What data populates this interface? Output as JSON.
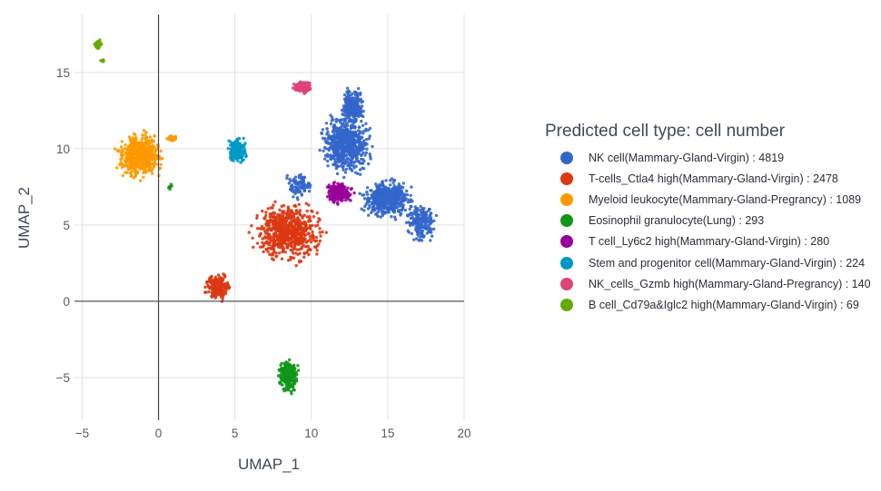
{
  "chart_data": {
    "type": "scatter",
    "xlabel": "UMAP_1",
    "ylabel": "UMAP_2",
    "xlim": [
      -5.5,
      20
    ],
    "ylim": [
      -7.8,
      18.8
    ],
    "x_ticks": [
      -5,
      0,
      5,
      10,
      15,
      20
    ],
    "y_ticks": [
      -5,
      0,
      5,
      10,
      15
    ],
    "x_tick_labels": [
      "−5",
      "0",
      "5",
      "10",
      "15",
      "20"
    ],
    "y_tick_labels": [
      "−5",
      "0",
      "5",
      "10",
      "15"
    ],
    "grid": true,
    "zero_lines": true,
    "legend_title": "Predicted cell type: cell number",
    "legend_position": "right",
    "series": [
      {
        "name": "NK cell(Mammary-Gland-Virgin) : 4819",
        "count": 4819,
        "color": "#3366cc",
        "clusters": [
          {
            "x": [
              10.3,
              14.2
            ],
            "y": [
              8.0,
              12.5
            ],
            "n": 650
          },
          {
            "x": [
              11.8,
              13.6
            ],
            "y": [
              11.5,
              14.1
            ],
            "n": 260
          },
          {
            "x": [
              13.0,
              17.0
            ],
            "y": [
              5.2,
              8.2
            ],
            "n": 520
          },
          {
            "x": [
              16.0,
              18.4
            ],
            "y": [
              3.5,
              6.8
            ],
            "n": 180
          },
          {
            "x": [
              8.0,
              10.5
            ],
            "y": [
              6.6,
              8.6
            ],
            "n": 90
          }
        ]
      },
      {
        "name": "T-cells_Ctla4 high(Mammary-Gland-Virgin) : 2478",
        "count": 2478,
        "color": "#dc3912",
        "clusters": [
          {
            "x": [
              5.8,
              11.2
            ],
            "y": [
              2.2,
              6.8
            ],
            "n": 650
          },
          {
            "x": [
              2.9,
              4.9
            ],
            "y": [
              -0.2,
              2.1
            ],
            "n": 200
          }
        ]
      },
      {
        "name": "Myeloid leukocyte(Mammary-Gland-Pregrancy) : 1089",
        "count": 1089,
        "color": "#ff9900",
        "clusters": [
          {
            "x": [
              -3.0,
              0.6
            ],
            "y": [
              7.7,
              11.4
            ],
            "n": 520
          },
          {
            "x": [
              0.3,
              1.5
            ],
            "y": [
              10.4,
              10.9
            ],
            "n": 30
          }
        ]
      },
      {
        "name": "Eosinophil granulocyte(Lung) : 293",
        "count": 293,
        "color": "#109618",
        "clusters": [
          {
            "x": [
              7.7,
              9.3
            ],
            "y": [
              -6.2,
              -3.6
            ],
            "n": 220
          },
          {
            "x": [
              0.4,
              1.0
            ],
            "y": [
              7.2,
              7.8
            ],
            "n": 6
          }
        ]
      },
      {
        "name": "T cell_Ly6c2 high(Mammary-Gland-Virgin) : 280",
        "count": 280,
        "color": "#990099",
        "clusters": [
          {
            "x": [
              10.8,
              12.9
            ],
            "y": [
              6.3,
              7.9
            ],
            "n": 240
          }
        ]
      },
      {
        "name": "Stem and progenitor cell(Mammary-Gland-Virgin) : 224",
        "count": 224,
        "color": "#0099c6",
        "clusters": [
          {
            "x": [
              4.3,
              6.0
            ],
            "y": [
              8.9,
              10.9
            ],
            "n": 200
          }
        ]
      },
      {
        "name": "NK_cells_Gzmb high(Mammary-Gland-Pregrancy) : 140",
        "count": 140,
        "color": "#dd4477",
        "clusters": [
          {
            "x": [
              8.7,
              10.1
            ],
            "y": [
              13.6,
              14.5
            ],
            "n": 130
          }
        ]
      },
      {
        "name": "B cell_Cd79a&Iglc2 high(Mammary-Gland-Virgin) : 69",
        "count": 69,
        "color": "#66aa00",
        "clusters": [
          {
            "x": [
              -4.2,
              -3.7
            ],
            "y": [
              16.5,
              17.2
            ],
            "n": 55
          },
          {
            "x": [
              -3.8,
              -3.5
            ],
            "y": [
              15.6,
              15.9
            ],
            "n": 10
          }
        ]
      }
    ]
  }
}
